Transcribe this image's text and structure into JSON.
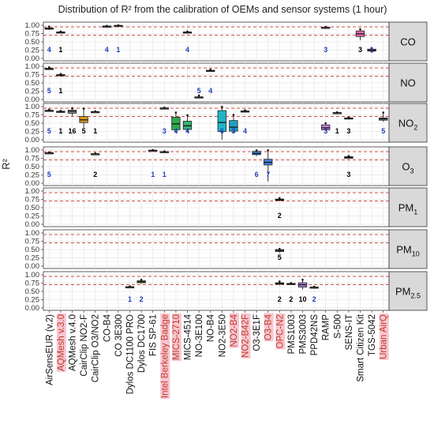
{
  "chart_data": {
    "type": "box",
    "title": "Distribution of R² from the calibration of OEMs and sensor systems (1 hour)",
    "ylabel": "R²",
    "ylim": [
      0,
      1
    ],
    "yticks": [
      "0.00",
      "0.25",
      "0.50",
      "0.75",
      "1.00"
    ],
    "reference_lines": [
      0.7,
      0.95
    ],
    "colors": {
      "panel_bg": "#ffffff",
      "grid": "#e6e6e6",
      "strip_bg": "#d9d9d9",
      "reference": "#c0392b",
      "count": "#1f3fbf",
      "count_other": "#000000",
      "highlight": "#c0392b",
      "highlight_bg": "#f7c6cf"
    },
    "categories": [
      {
        "label": "AirSensEUR (v.2)",
        "highlight": false,
        "color": "#6b6b6b"
      },
      {
        "label": "AQMesh v.3.0",
        "highlight": true,
        "color": "#6b6b6b"
      },
      {
        "label": "AQMesh v.4.0",
        "highlight": false,
        "color": "#8c8c8c"
      },
      {
        "label": "CairClip NO2-F",
        "highlight": false,
        "color": "#d99a1f"
      },
      {
        "label": "CairClip O3/NO2",
        "highlight": false,
        "color": "#b8a31b"
      },
      {
        "label": "CO-B4",
        "highlight": false,
        "color": "#888888"
      },
      {
        "label": "CO 3E300",
        "highlight": false,
        "color": "#888888"
      },
      {
        "label": "Dylos DC1100 PRO",
        "highlight": false,
        "color": "#888888"
      },
      {
        "label": "Dylos DC1700",
        "highlight": false,
        "color": "#7e9a2e"
      },
      {
        "label": "FIS SP-61",
        "highlight": false,
        "color": "#888888"
      },
      {
        "label": "Intel Berkeley Badge",
        "highlight": true,
        "color": "#888888"
      },
      {
        "label": "MICS-2710",
        "highlight": true,
        "color": "#2fa84f"
      },
      {
        "label": "MICS-4514",
        "highlight": false,
        "color": "#36b373"
      },
      {
        "label": "NO-3E100",
        "highlight": false,
        "color": "#888888"
      },
      {
        "label": "NO-B4",
        "highlight": false,
        "color": "#888888"
      },
      {
        "label": "NO2-3E50",
        "highlight": false,
        "color": "#1fb5c9"
      },
      {
        "label": "NO2-B4",
        "highlight": true,
        "color": "#1ea1c4"
      },
      {
        "label": "NO2-B42F",
        "highlight": true,
        "color": "#888888"
      },
      {
        "label": "O3-3E1F",
        "highlight": false,
        "color": "#3c8ad6"
      },
      {
        "label": "O3-B4",
        "highlight": true,
        "color": "#4a7fd8"
      },
      {
        "label": "OPC-N2",
        "highlight": true,
        "color": "#888888"
      },
      {
        "label": "PMS1003",
        "highlight": false,
        "color": "#888888"
      },
      {
        "label": "PMS3003",
        "highlight": false,
        "color": "#a67fd6"
      },
      {
        "label": "PPD42NS",
        "highlight": false,
        "color": "#888888"
      },
      {
        "label": "RAMP",
        "highlight": false,
        "color": "#c77cdb"
      },
      {
        "label": "S-500",
        "highlight": false,
        "color": "#888888"
      },
      {
        "label": "SENS-IT",
        "highlight": false,
        "color": "#888888"
      },
      {
        "label": "Smart Citizen Kit",
        "highlight": false,
        "color": "#e06aa6"
      },
      {
        "label": "TGS-5042",
        "highlight": false,
        "color": "#e06aa6"
      },
      {
        "label": "Urban AirQ",
        "highlight": true,
        "color": "#888888"
      }
    ],
    "panels": [
      {
        "strip": "CO",
        "strip_sub": "",
        "boxes": [
          {
            "cat": 0,
            "min": 0.86,
            "q1": 0.88,
            "median": 0.9,
            "q3": 0.92,
            "max": 0.96,
            "n": "4",
            "blue": true
          },
          {
            "cat": 1,
            "min": 0.77,
            "q1": 0.78,
            "median": 0.79,
            "q3": 0.8,
            "max": 0.81,
            "n": "1",
            "blue": false
          },
          {
            "cat": 5,
            "min": 0.96,
            "q1": 0.965,
            "median": 0.97,
            "q3": 0.975,
            "max": 0.98,
            "n": "4",
            "blue": true
          },
          {
            "cat": 6,
            "min": 0.98,
            "q1": 0.985,
            "median": 0.99,
            "q3": 0.995,
            "max": 1.0,
            "n": "1",
            "blue": true
          },
          {
            "cat": 12,
            "min": 0.77,
            "q1": 0.78,
            "median": 0.79,
            "q3": 0.8,
            "max": 0.81,
            "n": "4",
            "blue": true
          },
          {
            "cat": 24,
            "min": 0.92,
            "q1": 0.93,
            "median": 0.935,
            "q3": 0.94,
            "max": 0.95,
            "n": "3",
            "blue": true
          },
          {
            "cat": 27,
            "min": 0.55,
            "q1": 0.66,
            "median": 0.74,
            "q3": 0.83,
            "max": 0.88,
            "n": "3",
            "blue": false
          },
          {
            "cat": 28,
            "min": 0.16,
            "q1": 0.22,
            "median": 0.25,
            "q3": 0.28,
            "max": 0.31,
            "n": "1",
            "blue": true
          }
        ]
      },
      {
        "strip": "NO",
        "strip_sub": "",
        "boxes": [
          {
            "cat": 0,
            "min": 0.9,
            "q1": 0.92,
            "median": 0.93,
            "q3": 0.94,
            "max": 0.97,
            "n": "5",
            "blue": true
          },
          {
            "cat": 1,
            "min": 0.71,
            "q1": 0.73,
            "median": 0.74,
            "q3": 0.75,
            "max": 0.77,
            "n": "1",
            "blue": false
          },
          {
            "cat": 13,
            "min": 0.05,
            "q1": 0.06,
            "median": 0.07,
            "q3": 0.08,
            "max": 0.12,
            "n": "5",
            "blue": true
          },
          {
            "cat": 14,
            "min": 0.84,
            "q1": 0.86,
            "median": 0.87,
            "q3": 0.88,
            "max": 0.9,
            "n": "4",
            "blue": true
          }
        ]
      },
      {
        "strip": "NO",
        "strip_sub": "2",
        "boxes": [
          {
            "cat": 0,
            "min": 0.86,
            "q1": 0.87,
            "median": 0.88,
            "q3": 0.89,
            "max": 0.91,
            "n": "5",
            "blue": true
          },
          {
            "cat": 1,
            "min": 0.83,
            "q1": 0.84,
            "median": 0.85,
            "q3": 0.86,
            "max": 0.87,
            "n": "1",
            "blue": false
          },
          {
            "cat": 2,
            "min": 0.72,
            "q1": 0.8,
            "median": 0.86,
            "q3": 0.89,
            "max": 0.95,
            "n": "16",
            "blue": false
          },
          {
            "cat": 3,
            "min": 0.36,
            "q1": 0.52,
            "median": 0.6,
            "q3": 0.7,
            "max": 0.94,
            "n": "5",
            "blue": false
          },
          {
            "cat": 4,
            "min": 0.82,
            "q1": 0.83,
            "median": 0.84,
            "q3": 0.85,
            "max": 0.86,
            "n": "1",
            "blue": false
          },
          {
            "cat": 10,
            "min": 0.94,
            "q1": 0.95,
            "median": 0.955,
            "q3": 0.96,
            "max": 0.97,
            "n": "3",
            "blue": true
          },
          {
            "cat": 11,
            "min": 0.2,
            "q1": 0.3,
            "median": 0.48,
            "q3": 0.68,
            "max": 0.82,
            "n": "4",
            "blue": true
          },
          {
            "cat": 12,
            "min": 0.25,
            "q1": 0.31,
            "median": 0.42,
            "q3": 0.56,
            "max": 0.74,
            "n": "4",
            "blue": true
          },
          {
            "cat": 15,
            "min": 0.0,
            "q1": 0.25,
            "median": 0.52,
            "q3": 0.88,
            "max": 0.99,
            "n": "6",
            "blue": true
          },
          {
            "cat": 16,
            "min": 0.2,
            "q1": 0.26,
            "median": 0.38,
            "q3": 0.58,
            "max": 0.75,
            "n": "3",
            "blue": true
          },
          {
            "cat": 17,
            "min": 0.84,
            "q1": 0.85,
            "median": 0.86,
            "q3": 0.87,
            "max": 0.89,
            "n": "4",
            "blue": true
          },
          {
            "cat": 24,
            "min": 0.25,
            "q1": 0.3,
            "median": 0.36,
            "q3": 0.45,
            "max": 0.5,
            "n": "3",
            "blue": true
          },
          {
            "cat": 25,
            "min": 0.8,
            "q1": 0.81,
            "median": 0.815,
            "q3": 0.82,
            "max": 0.83,
            "n": "1",
            "blue": false
          },
          {
            "cat": 26,
            "min": 0.63,
            "q1": 0.64,
            "median": 0.65,
            "q3": 0.66,
            "max": 0.67,
            "n": "3",
            "blue": false
          },
          {
            "cat": 29,
            "min": 0.55,
            "q1": 0.59,
            "median": 0.63,
            "q3": 0.66,
            "max": 0.82,
            "n": "5",
            "blue": true
          }
        ]
      },
      {
        "strip": "O",
        "strip_sub": "3",
        "boxes": [
          {
            "cat": 0,
            "min": 0.9,
            "q1": 0.91,
            "median": 0.915,
            "q3": 0.92,
            "max": 0.93,
            "n": "5",
            "blue": true
          },
          {
            "cat": 4,
            "min": 0.87,
            "q1": 0.88,
            "median": 0.885,
            "q3": 0.89,
            "max": 0.9,
            "n": "2",
            "blue": false
          },
          {
            "cat": 9,
            "min": 0.98,
            "q1": 0.985,
            "median": 0.99,
            "q3": 0.995,
            "max": 1.0,
            "n": "1",
            "blue": true
          },
          {
            "cat": 10,
            "min": 0.94,
            "q1": 0.945,
            "median": 0.95,
            "q3": 0.955,
            "max": 0.96,
            "n": "1",
            "blue": true
          },
          {
            "cat": 18,
            "min": 0.82,
            "q1": 0.86,
            "median": 0.9,
            "q3": 0.96,
            "max": 0.99,
            "n": "6",
            "blue": true
          },
          {
            "cat": 19,
            "min": 0.05,
            "q1": 0.55,
            "median": 0.63,
            "q3": 0.72,
            "max": 0.99,
            "n": "7",
            "blue": true
          },
          {
            "cat": 26,
            "min": 0.73,
            "q1": 0.75,
            "median": 0.78,
            "q3": 0.8,
            "max": 0.82,
            "n": "3",
            "blue": false
          }
        ]
      },
      {
        "strip": "PM",
        "strip_sub": "1",
        "boxes": [
          {
            "cat": 20,
            "min": 0.69,
            "q1": 0.72,
            "median": 0.74,
            "q3": 0.76,
            "max": 0.79,
            "n": "2",
            "blue": false
          }
        ]
      },
      {
        "strip": "PM",
        "strip_sub": "10",
        "boxes": [
          {
            "cat": 20,
            "min": 0.4,
            "q1": 0.44,
            "median": 0.47,
            "q3": 0.5,
            "max": 0.52,
            "n": "5",
            "blue": false
          }
        ]
      },
      {
        "strip": "PM",
        "strip_sub": "2.5",
        "boxes": [
          {
            "cat": 7,
            "min": 0.62,
            "q1": 0.63,
            "median": 0.635,
            "q3": 0.64,
            "max": 0.65,
            "n": "1",
            "blue": true
          },
          {
            "cat": 8,
            "min": 0.74,
            "q1": 0.76,
            "median": 0.79,
            "q3": 0.82,
            "max": 0.85,
            "n": "2",
            "blue": true
          },
          {
            "cat": 20,
            "min": 0.68,
            "q1": 0.72,
            "median": 0.74,
            "q3": 0.76,
            "max": 0.8,
            "n": "2",
            "blue": false
          },
          {
            "cat": 21,
            "min": 0.7,
            "q1": 0.72,
            "median": 0.73,
            "q3": 0.74,
            "max": 0.75,
            "n": "2",
            "blue": false
          },
          {
            "cat": 22,
            "min": 0.56,
            "q1": 0.63,
            "median": 0.7,
            "q3": 0.76,
            "max": 0.85,
            "n": "10",
            "blue": false
          },
          {
            "cat": 23,
            "min": 0.61,
            "q1": 0.62,
            "median": 0.625,
            "q3": 0.63,
            "max": 0.64,
            "n": "2",
            "blue": true
          }
        ]
      }
    ]
  }
}
